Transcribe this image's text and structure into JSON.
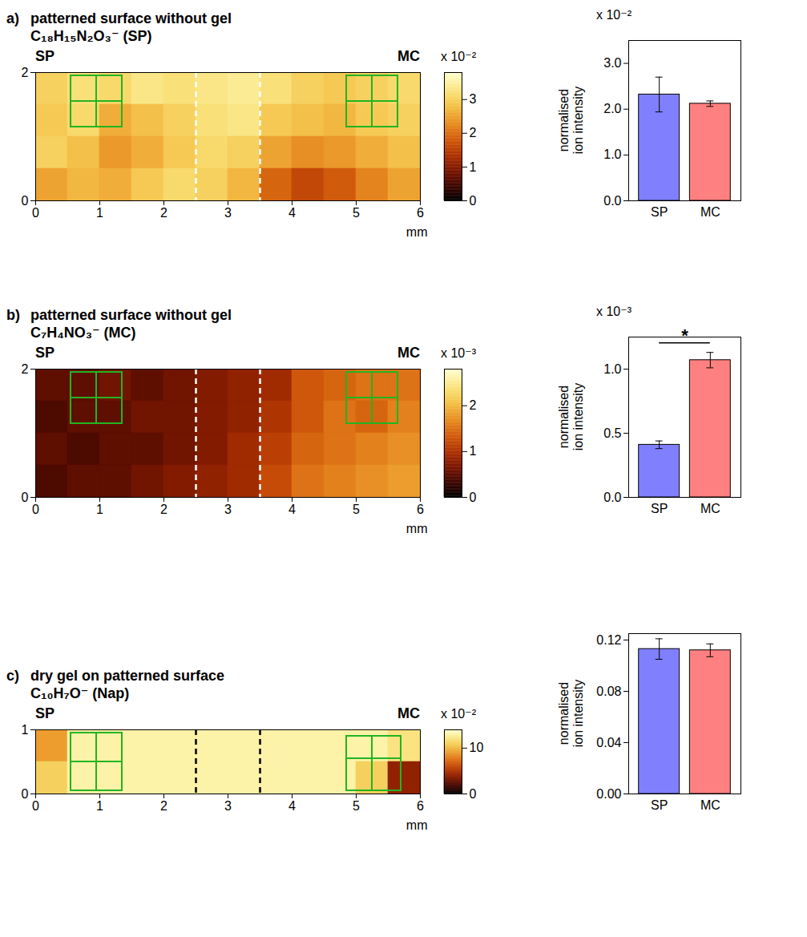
{
  "chart_data": [
    {
      "type": "heatmap",
      "panel": "a)",
      "title": "patterned surface without gel",
      "subtitle": "C₁₈H₁₅N₂O₃⁻ (SP)",
      "left_label": "SP",
      "right_label": "MC",
      "xlabel": "mm",
      "xlim": [
        0,
        6
      ],
      "ylim": [
        0,
        2
      ],
      "xticks": [
        0,
        1,
        2,
        3,
        4,
        5,
        6
      ],
      "yticks": [
        0,
        2
      ],
      "cells": [
        [
          3.0,
          3.2,
          3.1,
          3.3,
          3.2,
          3.3,
          3.4,
          3.2,
          3.0,
          2.9,
          3.0,
          3.1
        ],
        [
          2.9,
          3.1,
          2.6,
          2.8,
          3.0,
          3.2,
          3.3,
          2.9,
          2.8,
          2.7,
          2.9,
          3.0
        ],
        [
          3.0,
          2.8,
          2.4,
          2.6,
          2.9,
          3.1,
          3.0,
          2.5,
          2.3,
          2.4,
          2.6,
          2.8
        ],
        [
          2.5,
          2.7,
          2.6,
          2.9,
          3.1,
          3.0,
          2.7,
          1.9,
          1.6,
          1.8,
          2.2,
          2.5
        ]
      ],
      "color_range": [
        0,
        3.8
      ],
      "color_ticks": [
        0,
        1,
        2,
        3
      ],
      "color_label": "x 10⁻²",
      "dividers": {
        "x": [
          2.5,
          3.5
        ],
        "color": "#ffffff"
      },
      "rois": {
        "color": "#22b422",
        "boxes": [
          [
            0.55,
            0.95,
            1.15,
            1.55
          ],
          [
            0.95,
            1.35,
            1.15,
            1.55
          ],
          [
            0.55,
            0.95,
            1.55,
            1.95
          ],
          [
            0.95,
            1.35,
            1.55,
            1.95
          ],
          [
            4.85,
            5.25,
            1.15,
            1.55
          ],
          [
            5.25,
            5.65,
            1.15,
            1.55
          ],
          [
            4.85,
            5.25,
            1.55,
            1.95
          ],
          [
            5.25,
            5.65,
            1.55,
            1.95
          ]
        ]
      }
    },
    {
      "type": "bar",
      "categories": [
        "SP",
        "MC"
      ],
      "values": [
        2.32,
        2.12
      ],
      "errors": [
        0.38,
        0.06
      ],
      "colors": [
        "#8080ff",
        "#ff8080"
      ],
      "ylabel": "normalised ion intensity",
      "yscale_label": "x 10⁻²",
      "ylim": [
        0,
        3.5
      ],
      "yticks": [
        {
          "value": 0,
          "label": "0.0"
        },
        {
          "value": 1,
          "label": "1.0"
        },
        {
          "value": 2,
          "label": "2.0"
        },
        {
          "value": 3,
          "label": "3.0"
        }
      ]
    },
    {
      "type": "heatmap",
      "panel": "b)",
      "title": "patterned surface without gel",
      "subtitle": "C₇H₄NO₃⁻ (MC)",
      "left_label": "SP",
      "right_label": "MC",
      "xlabel": "mm",
      "xlim": [
        0,
        6
      ],
      "ylim": [
        0,
        2
      ],
      "xticks": [
        0,
        1,
        2,
        3,
        4,
        5,
        6
      ],
      "yticks": [
        0,
        2
      ],
      "cells": [
        [
          0.5,
          0.5,
          0.6,
          0.5,
          0.6,
          0.7,
          0.8,
          0.9,
          1.3,
          1.4,
          1.5,
          1.5
        ],
        [
          0.4,
          0.5,
          0.5,
          0.6,
          0.6,
          0.7,
          0.8,
          1.0,
          1.3,
          1.5,
          1.4,
          1.6
        ],
        [
          0.5,
          0.4,
          0.5,
          0.5,
          0.6,
          0.7,
          0.9,
          1.1,
          1.4,
          1.5,
          1.6,
          1.7
        ],
        [
          0.4,
          0.5,
          0.5,
          0.6,
          0.7,
          0.8,
          0.9,
          1.2,
          1.5,
          1.6,
          1.7,
          1.8
        ]
      ],
      "color_range": [
        0,
        2.8
      ],
      "color_ticks": [
        0,
        1,
        2
      ],
      "color_label": "x 10⁻³",
      "dividers": {
        "x": [
          2.5,
          3.5
        ],
        "color": "#ffffff"
      },
      "rois": {
        "color": "#22b422",
        "boxes": [
          [
            0.55,
            0.95,
            1.15,
            1.55
          ],
          [
            0.95,
            1.35,
            1.15,
            1.55
          ],
          [
            0.55,
            0.95,
            1.55,
            1.95
          ],
          [
            0.95,
            1.35,
            1.55,
            1.95
          ],
          [
            4.85,
            5.25,
            1.15,
            1.55
          ],
          [
            5.25,
            5.65,
            1.15,
            1.55
          ],
          [
            4.85,
            5.25,
            1.55,
            1.95
          ],
          [
            5.25,
            5.65,
            1.55,
            1.95
          ]
        ]
      }
    },
    {
      "type": "bar",
      "categories": [
        "SP",
        "MC"
      ],
      "values": [
        0.41,
        1.07
      ],
      "errors": [
        0.03,
        0.06
      ],
      "colors": [
        "#8080ff",
        "#ff8080"
      ],
      "ylabel": "normalised ion intensity",
      "yscale_label": "x 10⁻³",
      "significance": "*",
      "ylim": [
        0,
        1.25
      ],
      "yticks": [
        {
          "value": 0,
          "label": "0.0"
        },
        {
          "value": 0.5,
          "label": "0.5"
        },
        {
          "value": 1,
          "label": "1.0"
        }
      ]
    },
    {
      "type": "heatmap",
      "panel": "c)",
      "title": "dry gel on patterned surface",
      "subtitle": "C₁₀H₇O⁻ (Nap)",
      "left_label": "SP",
      "right_label": "MC",
      "xlabel": "mm",
      "xlim": [
        0,
        6
      ],
      "ylim": [
        0,
        1
      ],
      "xticks": [
        0,
        1,
        2,
        3,
        4,
        5,
        6
      ],
      "yticks": [
        0,
        1
      ],
      "cells": [
        [
          9,
          13,
          13,
          13,
          13,
          13,
          13,
          13,
          13,
          13,
          13,
          12
        ],
        [
          11,
          13,
          13,
          13,
          13,
          13,
          13,
          13,
          13,
          13,
          11,
          4
        ]
      ],
      "color_range": [
        0,
        14
      ],
      "color_ticks": [
        0,
        10
      ],
      "color_label": "x 10⁻²",
      "dividers": {
        "x": [
          2.5,
          3.5
        ],
        "color": "#000000"
      },
      "rois": {
        "color": "#22b422",
        "boxes": [
          [
            0.55,
            0.95,
            0.05,
            0.5
          ],
          [
            0.95,
            1.35,
            0.05,
            0.5
          ],
          [
            0.55,
            0.95,
            0.5,
            0.95
          ],
          [
            0.95,
            1.35,
            0.5,
            0.95
          ],
          [
            4.85,
            5.25,
            0.05,
            0.55
          ],
          [
            5.25,
            5.7,
            0.05,
            0.55
          ],
          [
            4.85,
            5.25,
            0.55,
            0.9
          ],
          [
            5.25,
            5.7,
            0.55,
            0.9
          ]
        ]
      }
    },
    {
      "type": "bar",
      "categories": [
        "SP",
        "MC"
      ],
      "values": [
        0.113,
        0.112
      ],
      "errors": [
        0.008,
        0.005
      ],
      "colors": [
        "#8080ff",
        "#ff8080"
      ],
      "ylabel": "normalised ion intensity",
      "ylim": [
        0,
        0.125
      ],
      "yticks": [
        {
          "value": 0,
          "label": "0.00"
        },
        {
          "value": 0.04,
          "label": "0.04"
        },
        {
          "value": 0.08,
          "label": "0.08"
        },
        {
          "value": 0.12,
          "label": "0.12"
        }
      ]
    }
  ]
}
